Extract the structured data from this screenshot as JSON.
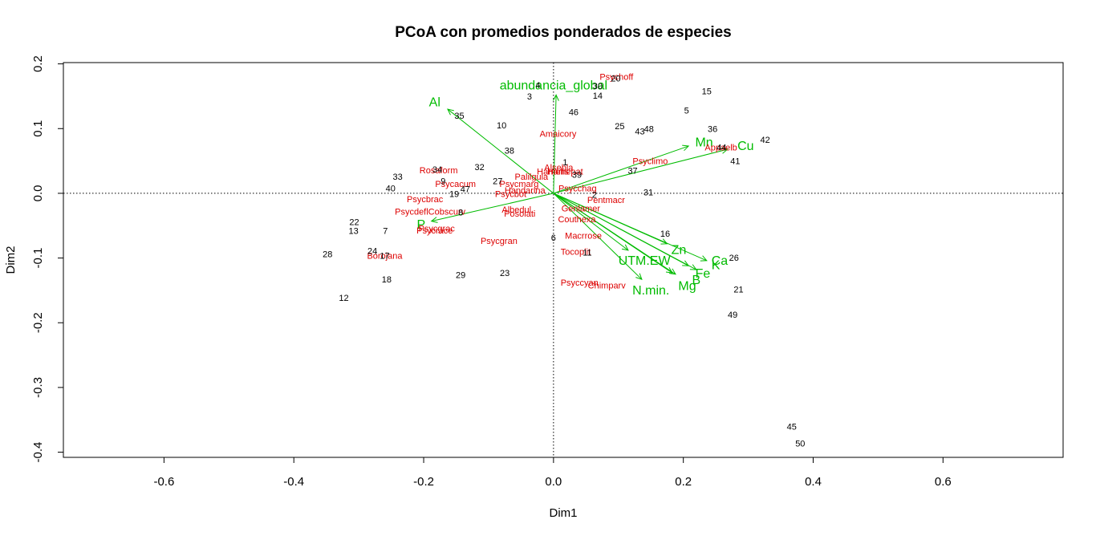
{
  "chart_data": {
    "type": "scatter",
    "title": "PCoA con promedios ponderados de especies",
    "xlabel": "Dim1",
    "ylabel": "Dim2",
    "xlim": [
      -0.755,
      0.785
    ],
    "ylim": [
      -0.408,
      0.202
    ],
    "xticks": [
      "-0.6",
      "-0.4",
      "-0.2",
      "0.0",
      "0.2",
      "0.4",
      "0.6"
    ],
    "yticks": [
      "-0.4",
      "-0.3",
      "-0.2",
      "-0.1",
      "0.0",
      "0.1",
      "0.2"
    ],
    "reference_lines": {
      "x": 0,
      "y": 0,
      "style": "dotted"
    },
    "colors": {
      "sites": "#000000",
      "species": "#dd0000",
      "vectors": "#00bb00",
      "axis": "#000000"
    },
    "sites": [
      {
        "label": "1",
        "x": 0.018,
        "y": 0.048
      },
      {
        "label": "2",
        "x": 0.063,
        "y": -0.002
      },
      {
        "label": "3",
        "x": -0.037,
        "y": 0.15
      },
      {
        "label": "4",
        "x": -0.024,
        "y": 0.167
      },
      {
        "label": "5",
        "x": 0.205,
        "y": 0.128
      },
      {
        "label": "6",
        "x": 0.0,
        "y": -0.068
      },
      {
        "label": "7",
        "x": -0.259,
        "y": -0.058
      },
      {
        "label": "8",
        "x": -0.143,
        "y": -0.029
      },
      {
        "label": "9",
        "x": -0.17,
        "y": 0.019
      },
      {
        "label": "10",
        "x": -0.08,
        "y": 0.105
      },
      {
        "label": "11",
        "x": 0.052,
        "y": -0.091
      },
      {
        "label": "12",
        "x": -0.323,
        "y": -0.161
      },
      {
        "label": "13",
        "x": -0.308,
        "y": -0.058
      },
      {
        "label": "14",
        "x": 0.068,
        "y": 0.151
      },
      {
        "label": "15",
        "x": 0.236,
        "y": 0.158
      },
      {
        "label": "16",
        "x": 0.172,
        "y": -0.062
      },
      {
        "label": "17",
        "x": -0.26,
        "y": -0.096
      },
      {
        "label": "18",
        "x": -0.257,
        "y": -0.133
      },
      {
        "label": "19",
        "x": -0.153,
        "y": -0.001
      },
      {
        "label": "20",
        "x": 0.096,
        "y": 0.178
      },
      {
        "label": "21",
        "x": 0.285,
        "y": -0.148
      },
      {
        "label": "22",
        "x": -0.307,
        "y": -0.044
      },
      {
        "label": "23",
        "x": -0.075,
        "y": -0.123
      },
      {
        "label": "24",
        "x": -0.279,
        "y": -0.089
      },
      {
        "label": "25",
        "x": 0.102,
        "y": 0.104
      },
      {
        "label": "26",
        "x": 0.278,
        "y": -0.099
      },
      {
        "label": "27",
        "x": -0.086,
        "y": 0.019
      },
      {
        "label": "28",
        "x": -0.348,
        "y": -0.094
      },
      {
        "label": "29",
        "x": -0.143,
        "y": -0.126
      },
      {
        "label": "30",
        "x": 0.068,
        "y": 0.166
      },
      {
        "label": "31",
        "x": 0.146,
        "y": 0.002
      },
      {
        "label": "32",
        "x": -0.114,
        "y": 0.041
      },
      {
        "label": "33",
        "x": -0.24,
        "y": 0.026
      },
      {
        "label": "34",
        "x": -0.179,
        "y": 0.037
      },
      {
        "label": "35",
        "x": -0.145,
        "y": 0.12
      },
      {
        "label": "36",
        "x": 0.245,
        "y": 0.1
      },
      {
        "label": "37",
        "x": 0.122,
        "y": 0.035
      },
      {
        "label": "38",
        "x": -0.068,
        "y": 0.066
      },
      {
        "label": "39",
        "x": 0.036,
        "y": 0.029
      },
      {
        "label": "40",
        "x": -0.251,
        "y": 0.008
      },
      {
        "label": "41",
        "x": 0.28,
        "y": 0.05
      },
      {
        "label": "42",
        "x": 0.326,
        "y": 0.083
      },
      {
        "label": "43",
        "x": 0.133,
        "y": 0.096
      },
      {
        "label": "44",
        "x": 0.259,
        "y": 0.071
      },
      {
        "label": "45",
        "x": 0.367,
        "y": -0.36
      },
      {
        "label": "46",
        "x": 0.031,
        "y": 0.126
      },
      {
        "label": "47",
        "x": -0.136,
        "y": 0.007
      },
      {
        "label": "48",
        "x": 0.147,
        "y": 0.1
      },
      {
        "label": "49",
        "x": 0.276,
        "y": -0.187
      },
      {
        "label": "50",
        "x": 0.38,
        "y": -0.386
      }
    ],
    "species": [
      {
        "label": "Psychoff",
        "x": 0.097,
        "y": 0.18
      },
      {
        "label": "Amaicory",
        "x": 0.007,
        "y": 0.092
      },
      {
        "label": "Appaelb",
        "x": 0.258,
        "y": 0.071
      },
      {
        "label": "Psyclimo",
        "x": 0.149,
        "y": 0.05
      },
      {
        "label": "Rosaform",
        "x": -0.177,
        "y": 0.036
      },
      {
        "label": "Alsebla",
        "x": 0.008,
        "y": 0.04
      },
      {
        "label": "Hamelis",
        "x": -0.001,
        "y": 0.034
      },
      {
        "label": "Hamepat",
        "x": 0.018,
        "y": 0.034
      },
      {
        "label": "Palilgula",
        "x": -0.034,
        "y": 0.026
      },
      {
        "label": "Psycmarg",
        "x": -0.053,
        "y": 0.015
      },
      {
        "label": "Psycacum",
        "x": -0.151,
        "y": 0.015
      },
      {
        "label": "Psycchag",
        "x": 0.037,
        "y": 0.008
      },
      {
        "label": "Handarina",
        "x": -0.044,
        "y": 0.005
      },
      {
        "label": "Psycbot",
        "x": -0.066,
        "y": -0.001
      },
      {
        "label": "Psycbrac",
        "x": -0.198,
        "y": -0.009
      },
      {
        "label": "Pentmacr",
        "x": 0.081,
        "y": -0.01
      },
      {
        "label": "Genlamer",
        "x": 0.042,
        "y": -0.023
      },
      {
        "label": "PsycdeflCobscurv",
        "x": -0.19,
        "y": -0.028
      },
      {
        "label": "Albedul",
        "x": -0.057,
        "y": -0.025
      },
      {
        "label": "Posolati",
        "x": -0.052,
        "y": -0.031
      },
      {
        "label": "Couthexa",
        "x": 0.036,
        "y": -0.04
      },
      {
        "label": "Psycgrac",
        "x": -0.18,
        "y": -0.054
      },
      {
        "label": "Psycrace",
        "x": -0.183,
        "y": -0.057
      },
      {
        "label": "Psycgran",
        "x": -0.084,
        "y": -0.073
      },
      {
        "label": "Macrrose",
        "x": 0.046,
        "y": -0.065
      },
      {
        "label": "Tocoplit",
        "x": 0.034,
        "y": -0.09
      },
      {
        "label": "Borojana",
        "x": -0.26,
        "y": -0.096
      },
      {
        "label": "Psyccyan",
        "x": 0.04,
        "y": -0.138
      },
      {
        "label": "Chimparv",
        "x": 0.082,
        "y": -0.142
      }
    ],
    "vectors": [
      {
        "label": "abundancia_global",
        "x": 0.004,
        "y": 0.152,
        "label_x": 0.0,
        "label_y": 0.168
      },
      {
        "label": "Al",
        "x": -0.163,
        "y": 0.13,
        "label_x": -0.183,
        "label_y": 0.142
      },
      {
        "label": "Mn",
        "x": 0.208,
        "y": 0.073,
        "label_x": 0.232,
        "label_y": 0.08
      },
      {
        "label": "Cu",
        "x": 0.268,
        "y": 0.068,
        "label_x": 0.296,
        "label_y": 0.074
      },
      {
        "label": "P",
        "x": -0.188,
        "y": -0.043,
        "label_x": -0.204,
        "label_y": -0.047
      },
      {
        "label": "Zn",
        "x": 0.175,
        "y": -0.078,
        "label_x": 0.193,
        "label_y": -0.086
      },
      {
        "label": "Ca",
        "x": 0.236,
        "y": -0.104,
        "label_x": 0.256,
        "label_y": -0.103
      },
      {
        "label": "K",
        "x": 0.22,
        "y": -0.118,
        "label_x": 0.25,
        "label_y": -0.11
      },
      {
        "label": "Fe",
        "x": 0.208,
        "y": -0.112,
        "label_x": 0.23,
        "label_y": -0.123
      },
      {
        "label": "B",
        "x": 0.188,
        "y": -0.125,
        "label_x": 0.22,
        "label_y": -0.133
      },
      {
        "label": "Mg",
        "x": 0.183,
        "y": -0.123,
        "label_x": 0.206,
        "label_y": -0.142
      },
      {
        "label": "UTM.EW",
        "x": 0.115,
        "y": -0.088,
        "label_x": 0.14,
        "label_y": -0.103
      },
      {
        "label": "N.min.",
        "x": 0.136,
        "y": -0.133,
        "label_x": 0.15,
        "label_y": -0.149
      }
    ]
  }
}
